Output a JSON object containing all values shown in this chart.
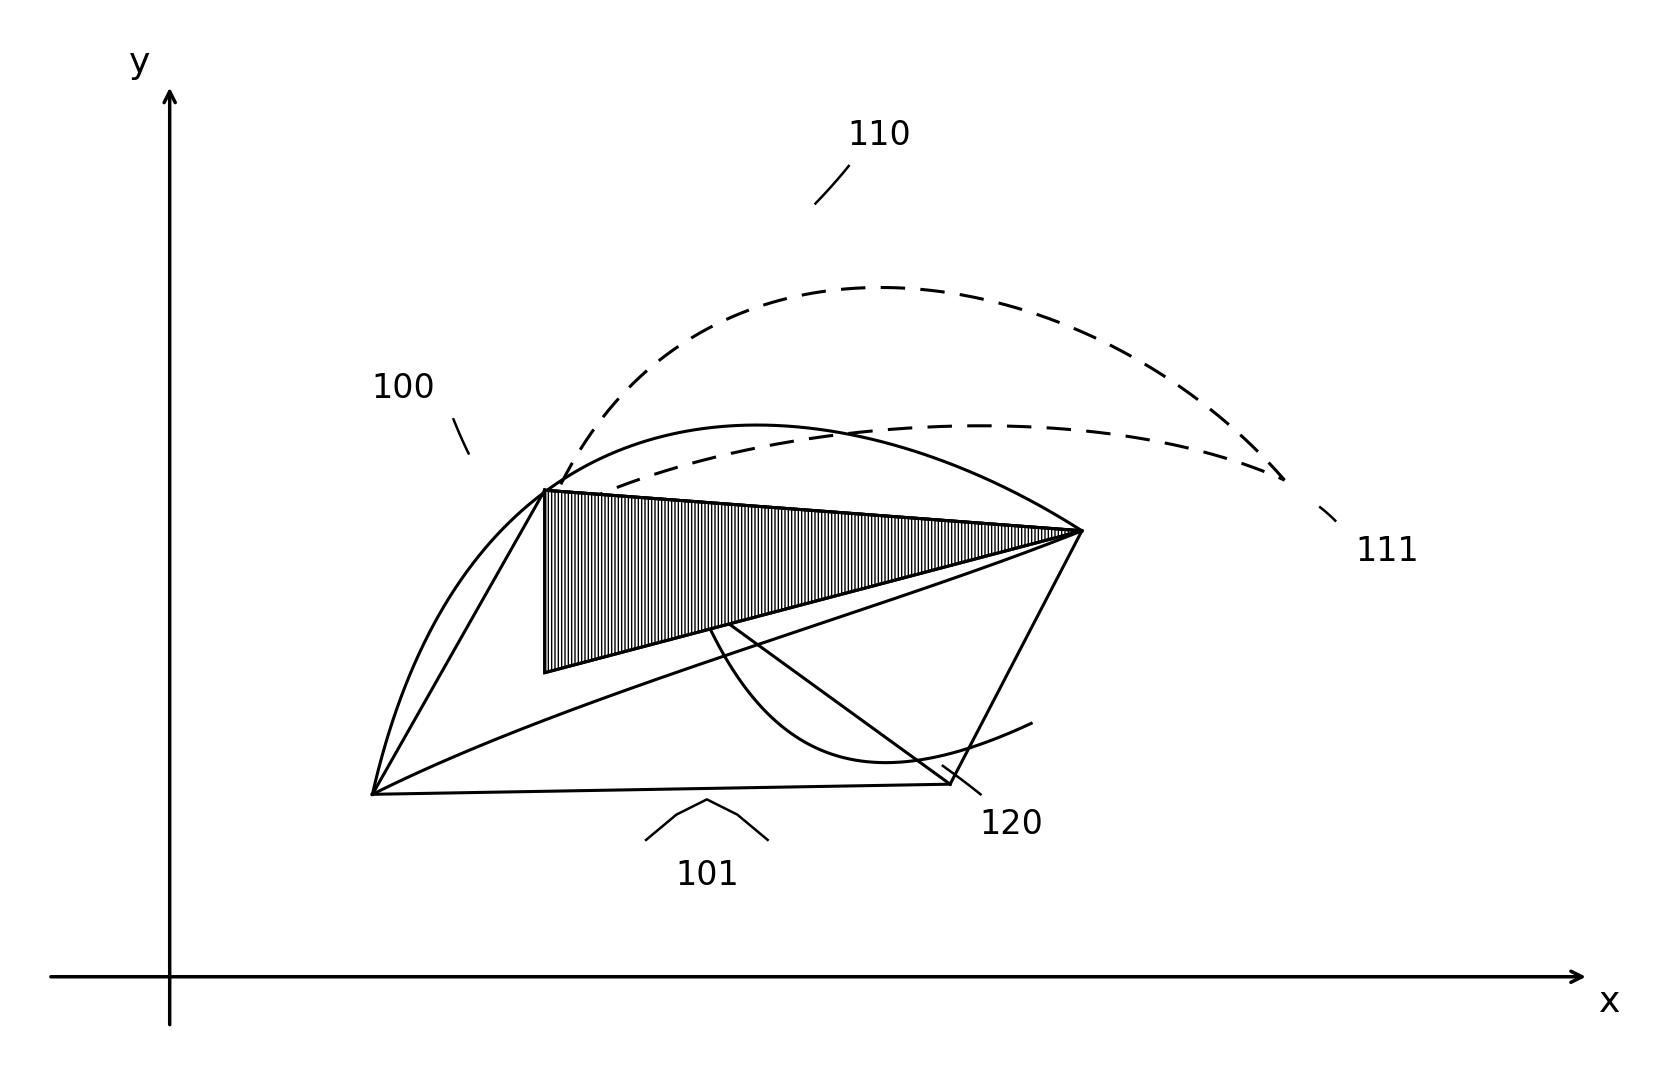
{
  "background_color": "#ffffff",
  "line_color": "#000000",
  "axis_color": "#404040",
  "label_100": "100",
  "label_101": "101",
  "label_110": "110",
  "label_111": "111",
  "label_120": "120",
  "label_x": "x",
  "label_y": "y",
  "figsize": [
    16.57,
    10.92
  ],
  "dpi": 100,
  "lw": 2.2,
  "lw_axis": 2.5,
  "fontsize_labels": 26,
  "fontsize_numbers": 24
}
